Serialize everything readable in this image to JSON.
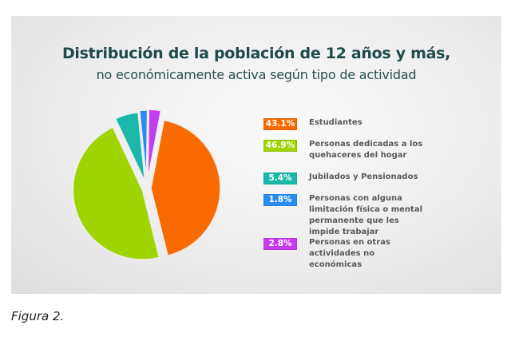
{
  "chart_data": {
    "type": "pie",
    "title": "Distribución de la población de 12 años y más,",
    "subtitle": "no económicamente activa según tipo de actividad",
    "slices": [
      {
        "label": "Estudiantes",
        "value": 43.1,
        "display": "43.1%",
        "color": "#f96b00"
      },
      {
        "label": "Personas dedicadas a los quehaceres del hogar",
        "value": 46.9,
        "display": "46.9%",
        "color": "#9fd400"
      },
      {
        "label": "Jubilados y Pensionados",
        "value": 5.4,
        "display": "5.4%",
        "color": "#1ab8a8"
      },
      {
        "label": "Personas con alguna limitación física o mental permanente que les impide trabajar",
        "value": 1.8,
        "display": "1.8%",
        "color": "#2b8cf0"
      },
      {
        "label": "Personas en otras actividades no económicas",
        "value": 2.8,
        "display": "2.8%",
        "color": "#c43cf0"
      }
    ],
    "legend_position": "right",
    "exploded": true
  },
  "caption": "Figura 2."
}
